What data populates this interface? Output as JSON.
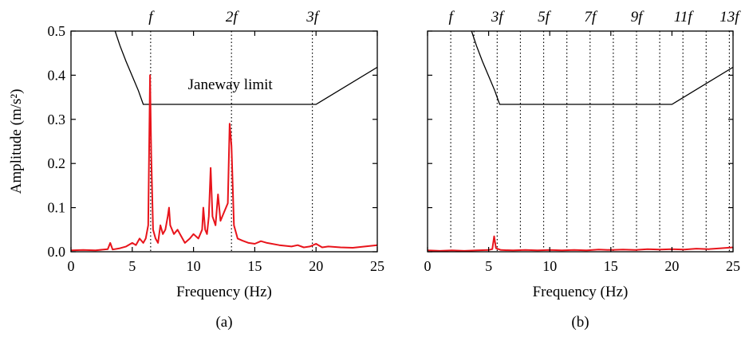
{
  "chart_data": [
    {
      "type": "line",
      "panel_label": "(a)",
      "xlabel": "Frequency (Hz)",
      "ylabel": "Amplitude (m/s²)",
      "xlim": [
        0,
        25
      ],
      "ylim": [
        0,
        0.5
      ],
      "x_ticks": [
        0,
        5,
        10,
        15,
        20,
        25
      ],
      "x_tick_labels": [
        "0",
        "5",
        "10",
        "15",
        "20",
        "25"
      ],
      "y_ticks": [
        0,
        0.1,
        0.2,
        0.3,
        0.4,
        0.5
      ],
      "y_tick_labels": [
        "0.0",
        "0.1",
        "0.2",
        "0.3",
        "0.4",
        "0.5"
      ],
      "harmonics": [
        {
          "label": "f",
          "x": 6.5
        },
        {
          "label": "2f",
          "x": 13.1
        },
        {
          "label": "3f",
          "x": 19.7
        }
      ],
      "annotation": "Janeway limit",
      "limit_curve_color": "#000000",
      "limit_curve": [
        [
          3.6,
          0.5
        ],
        [
          4.0,
          0.467
        ],
        [
          4.5,
          0.431
        ],
        [
          5.0,
          0.398
        ],
        [
          5.5,
          0.365
        ],
        [
          5.9,
          0.334
        ],
        [
          20.0,
          0.334
        ],
        [
          25.0,
          0.418
        ]
      ],
      "series_color": "#e8141b",
      "series": [
        [
          0,
          0.003
        ],
        [
          1,
          0.004
        ],
        [
          2,
          0.003
        ],
        [
          3,
          0.006
        ],
        [
          3.2,
          0.02
        ],
        [
          3.4,
          0.005
        ],
        [
          4,
          0.008
        ],
        [
          4.5,
          0.012
        ],
        [
          5,
          0.02
        ],
        [
          5.3,
          0.015
        ],
        [
          5.6,
          0.03
        ],
        [
          5.9,
          0.02
        ],
        [
          6.1,
          0.03
        ],
        [
          6.3,
          0.06
        ],
        [
          6.45,
          0.4
        ],
        [
          6.55,
          0.22
        ],
        [
          6.7,
          0.05
        ],
        [
          6.9,
          0.03
        ],
        [
          7.1,
          0.02
        ],
        [
          7.3,
          0.06
        ],
        [
          7.5,
          0.04
        ],
        [
          7.7,
          0.05
        ],
        [
          7.9,
          0.08
        ],
        [
          8.0,
          0.1
        ],
        [
          8.1,
          0.06
        ],
        [
          8.4,
          0.04
        ],
        [
          8.7,
          0.05
        ],
        [
          9.0,
          0.035
        ],
        [
          9.3,
          0.02
        ],
        [
          9.7,
          0.03
        ],
        [
          10.0,
          0.04
        ],
        [
          10.4,
          0.03
        ],
        [
          10.7,
          0.05
        ],
        [
          10.8,
          0.1
        ],
        [
          10.95,
          0.05
        ],
        [
          11.1,
          0.04
        ],
        [
          11.25,
          0.08
        ],
        [
          11.4,
          0.19
        ],
        [
          11.55,
          0.08
        ],
        [
          11.8,
          0.06
        ],
        [
          12.0,
          0.13
        ],
        [
          12.2,
          0.07
        ],
        [
          12.5,
          0.09
        ],
        [
          12.8,
          0.11
        ],
        [
          12.95,
          0.29
        ],
        [
          13.1,
          0.24
        ],
        [
          13.3,
          0.06
        ],
        [
          13.6,
          0.03
        ],
        [
          14.0,
          0.025
        ],
        [
          14.5,
          0.02
        ],
        [
          15.0,
          0.018
        ],
        [
          15.5,
          0.024
        ],
        [
          16.0,
          0.02
        ],
        [
          17.0,
          0.015
        ],
        [
          18.0,
          0.012
        ],
        [
          18.5,
          0.015
        ],
        [
          19.0,
          0.01
        ],
        [
          19.5,
          0.012
        ],
        [
          20.0,
          0.018
        ],
        [
          20.5,
          0.01
        ],
        [
          21.0,
          0.012
        ],
        [
          22.0,
          0.01
        ],
        [
          23.0,
          0.009
        ],
        [
          24.0,
          0.012
        ],
        [
          25.0,
          0.015
        ]
      ]
    },
    {
      "type": "line",
      "panel_label": "(b)",
      "xlabel": "Frequency (Hz)",
      "xlim": [
        0,
        25
      ],
      "ylim": [
        0,
        0.5
      ],
      "x_ticks": [
        0,
        5,
        10,
        15,
        20,
        25
      ],
      "x_tick_labels": [
        "0",
        "5",
        "10",
        "15",
        "20",
        "25"
      ],
      "harmonics": [
        {
          "label": "f",
          "x": 1.9
        },
        {
          "label": "3f",
          "x": 5.7
        },
        {
          "label": "5f",
          "x": 9.5
        },
        {
          "label": "7f",
          "x": 13.3
        },
        {
          "label": "9f",
          "x": 17.1
        },
        {
          "label": "11f",
          "x": 20.9
        },
        {
          "label": "13f",
          "x": 24.7
        }
      ],
      "extra_gridlines": [
        3.8,
        7.6,
        11.4,
        15.2,
        19.0,
        22.8
      ],
      "limit_curve_color": "#000000",
      "limit_curve": [
        [
          3.6,
          0.5
        ],
        [
          4.0,
          0.467
        ],
        [
          4.5,
          0.431
        ],
        [
          5.0,
          0.398
        ],
        [
          5.5,
          0.365
        ],
        [
          5.9,
          0.334
        ],
        [
          20.0,
          0.334
        ],
        [
          25.0,
          0.418
        ]
      ],
      "series_color": "#e8141b",
      "series": [
        [
          0,
          0.003
        ],
        [
          1,
          0.002
        ],
        [
          2,
          0.003
        ],
        [
          3,
          0.002
        ],
        [
          4,
          0.003
        ],
        [
          5,
          0.004
        ],
        [
          5.3,
          0.006
        ],
        [
          5.45,
          0.035
        ],
        [
          5.6,
          0.008
        ],
        [
          6.0,
          0.004
        ],
        [
          7,
          0.003
        ],
        [
          8,
          0.004
        ],
        [
          9,
          0.003
        ],
        [
          10,
          0.004
        ],
        [
          11,
          0.003
        ],
        [
          12,
          0.004
        ],
        [
          13,
          0.003
        ],
        [
          14,
          0.005
        ],
        [
          15,
          0.004
        ],
        [
          16,
          0.005
        ],
        [
          17,
          0.004
        ],
        [
          18,
          0.006
        ],
        [
          19,
          0.005
        ],
        [
          20,
          0.006
        ],
        [
          21,
          0.005
        ],
        [
          22,
          0.007
        ],
        [
          23,
          0.006
        ],
        [
          24,
          0.008
        ],
        [
          25,
          0.01
        ]
      ]
    }
  ]
}
